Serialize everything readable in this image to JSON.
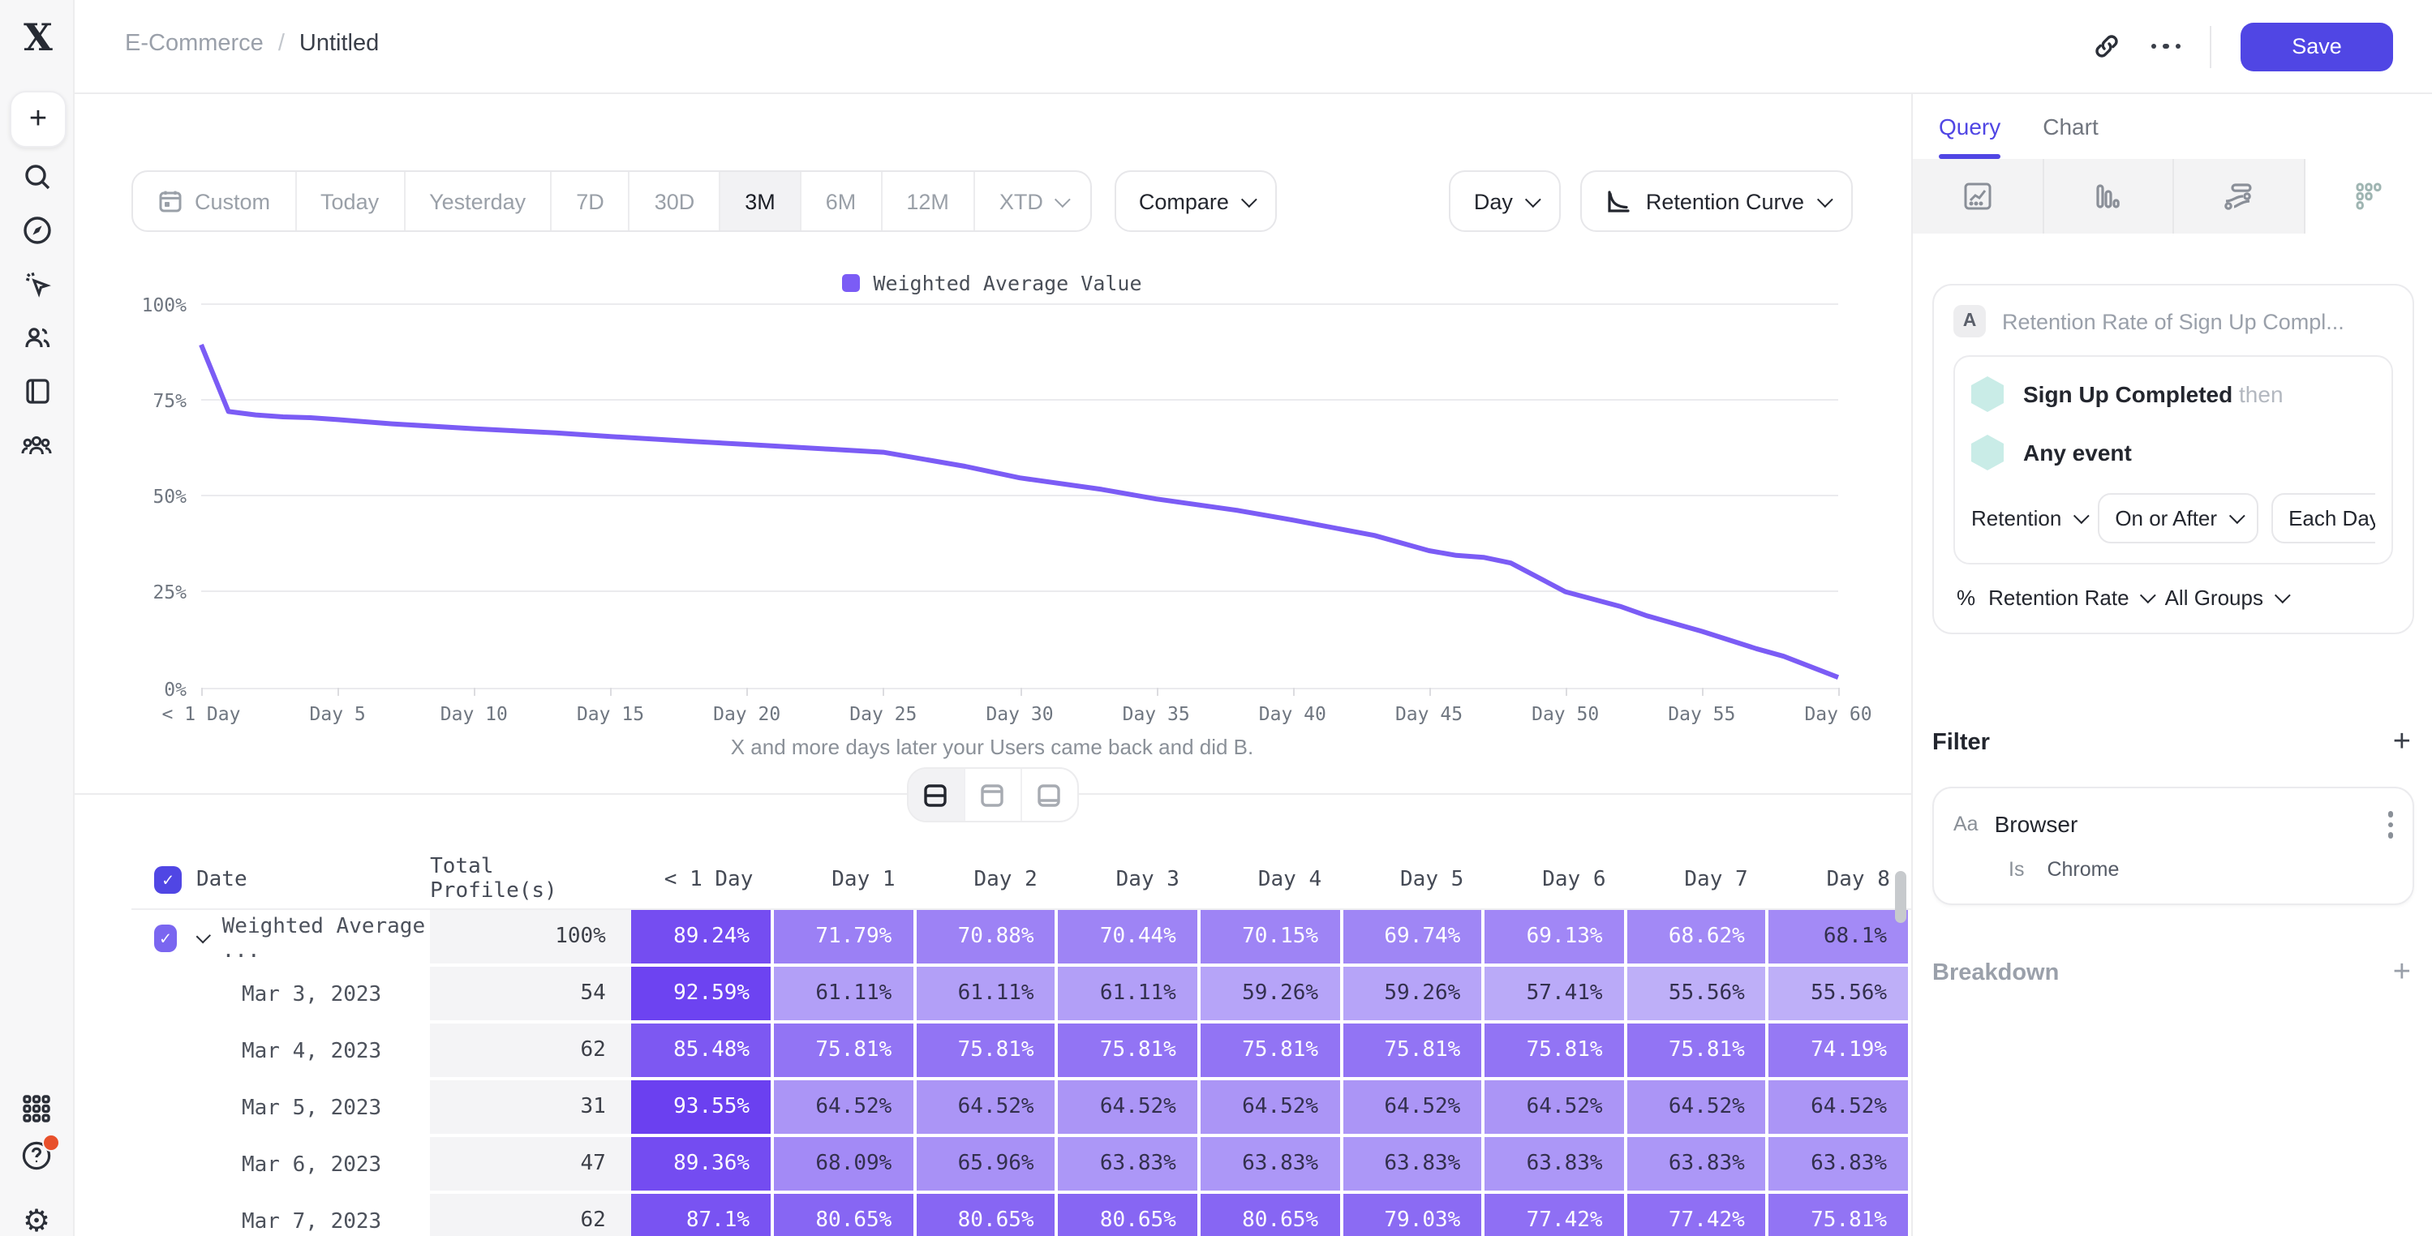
{
  "header": {
    "breadcrumb": {
      "parent": "E-Commerce",
      "separator": "/",
      "current": "Untitled"
    },
    "save_label": "Save"
  },
  "toolbar": {
    "ranges": [
      {
        "label": "Custom",
        "icon": "calendar"
      },
      {
        "label": "Today"
      },
      {
        "label": "Yesterday"
      },
      {
        "label": "7D"
      },
      {
        "label": "30D"
      },
      {
        "label": "3M",
        "selected": true
      },
      {
        "label": "6M"
      },
      {
        "label": "12M"
      },
      {
        "label": "XTD",
        "chevron": true
      }
    ],
    "compare_label": "Compare",
    "granularity_label": "Day",
    "view_label": "Retention Curve"
  },
  "chart_data": {
    "type": "line",
    "legend": [
      "Weighted Average Value"
    ],
    "caption": "X and more days later your Users came back and did B.",
    "x_ticks": [
      "< 1 Day",
      "Day 5",
      "Day 10",
      "Day 15",
      "Day 20",
      "Day 25",
      "Day 30",
      "Day 35",
      "Day 40",
      "Day 45",
      "Day 50",
      "Day 55",
      "Day 60"
    ],
    "y_ticks": [
      "100%",
      "75%",
      "50%",
      "25%",
      "0%"
    ],
    "xlim": [
      0,
      60
    ],
    "ylim": [
      0,
      100
    ],
    "grid": true,
    "legend_position": "top-center",
    "line_color": "#7b5cf5",
    "series": [
      {
        "name": "Weighted Average Value",
        "points": [
          [
            0,
            89.2
          ],
          [
            1,
            71.8
          ],
          [
            2,
            70.9
          ],
          [
            3,
            70.4
          ],
          [
            4,
            70.2
          ],
          [
            5,
            69.7
          ],
          [
            7,
            68.6
          ],
          [
            10,
            67.3
          ],
          [
            13,
            66.2
          ],
          [
            15,
            65.3
          ],
          [
            18,
            64.0
          ],
          [
            20,
            63.2
          ],
          [
            23,
            62.0
          ],
          [
            25,
            61.2
          ],
          [
            28,
            57.5
          ],
          [
            30,
            54.5
          ],
          [
            33,
            51.5
          ],
          [
            35,
            49.0
          ],
          [
            38,
            46.0
          ],
          [
            40,
            43.5
          ],
          [
            43,
            39.5
          ],
          [
            45,
            35.5
          ],
          [
            46,
            34.3
          ],
          [
            47,
            33.8
          ],
          [
            48,
            32.3
          ],
          [
            50,
            24.8
          ],
          [
            52,
            21.0
          ],
          [
            53,
            18.5
          ],
          [
            55,
            14.5
          ],
          [
            57,
            10.0
          ],
          [
            58,
            8.0
          ],
          [
            60,
            2.5
          ]
        ]
      }
    ]
  },
  "layout_toggle": {
    "options": [
      "split-view",
      "top-panel-view",
      "bottom-panel-view"
    ],
    "selected": "split-view"
  },
  "table": {
    "columns": [
      "Date",
      "Total Profile(s)",
      "< 1 Day",
      "Day 1",
      "Day 2",
      "Day 3",
      "Day 4",
      "Day 5",
      "Day 6",
      "Day 7",
      "Day 8"
    ],
    "rows": [
      {
        "label": "Weighted Average ...",
        "total": "100%",
        "checkbox": true,
        "chevron": true,
        "values": [
          89.24,
          71.79,
          70.88,
          70.44,
          70.15,
          69.74,
          69.13,
          68.62,
          68.1
        ]
      },
      {
        "label": "Mar 3, 2023",
        "total": "54",
        "values": [
          92.59,
          61.11,
          61.11,
          61.11,
          59.26,
          59.26,
          57.41,
          55.56,
          55.56
        ]
      },
      {
        "label": "Mar 4, 2023",
        "total": "62",
        "values": [
          85.48,
          75.81,
          75.81,
          75.81,
          75.81,
          75.81,
          75.81,
          75.81,
          74.19
        ]
      },
      {
        "label": "Mar 5, 2023",
        "total": "31",
        "values": [
          93.55,
          64.52,
          64.52,
          64.52,
          64.52,
          64.52,
          64.52,
          64.52,
          64.52
        ]
      },
      {
        "label": "Mar 6, 2023",
        "total": "47",
        "values": [
          89.36,
          68.09,
          65.96,
          63.83,
          63.83,
          63.83,
          63.83,
          63.83,
          63.83
        ]
      },
      {
        "label": "Mar 7, 2023",
        "total": "62",
        "values": [
          87.1,
          80.65,
          80.65,
          80.65,
          80.65,
          79.03,
          77.42,
          77.42,
          75.81
        ]
      }
    ]
  },
  "panel": {
    "tabs": [
      {
        "label": "Query",
        "active": true
      },
      {
        "label": "Chart",
        "active": false
      }
    ],
    "chart_type_icons": [
      "line-chart",
      "bar-chart",
      "flow-chart",
      "retention-grid"
    ],
    "selected_chart_type": "retention-grid",
    "query": {
      "badge": "A",
      "title": "Retention Rate of Sign Up Compl...",
      "first_event": "Sign Up Completed",
      "then_label": "then",
      "return_event": "Any event",
      "retention_label": "Retention",
      "window_label": "On or After",
      "interval_label": "Each Day",
      "measure_prefix": "%",
      "measure_label": "Retention Rate",
      "groups_label": "All Groups"
    },
    "filter": {
      "heading": "Filter",
      "property_type": "Aa",
      "property": "Browser",
      "operator": "Is",
      "value": "Chrome"
    },
    "breakdown": {
      "heading": "Breakdown"
    }
  },
  "colors": {
    "accent": "#5046e4",
    "line": "#7b5cf5",
    "cell_scale_light": "#cfc5fa",
    "cell_scale_dark": "#683cf0",
    "total_column_bg": "#f4f4f6",
    "help_badge": "#e8502b"
  }
}
